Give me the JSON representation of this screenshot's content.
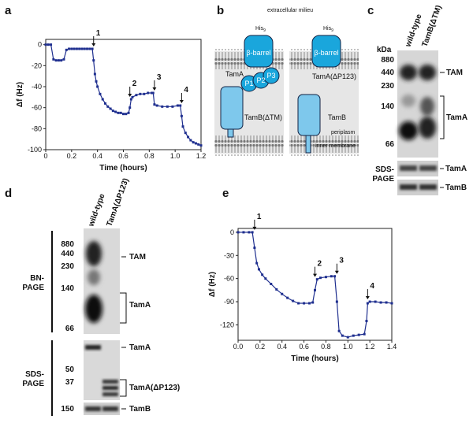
{
  "chart_data": [
    {
      "type": "line",
      "label": "a",
      "xlabel": "Time (hours)",
      "ylabel": "Δf (Hz)",
      "color": "#1f2f8f",
      "xlim": [
        0,
        1.2
      ],
      "xticks": [
        0,
        0.2,
        0.4,
        0.6,
        0.8,
        {
          "value": 1,
          "label": "1.0"
        },
        1.2
      ],
      "ylim": [
        -100,
        5
      ],
      "yticks": [
        0,
        -20,
        -40,
        -60,
        -80,
        -100
      ],
      "x": [
        0,
        0.02,
        0.04,
        0.06,
        0.08,
        0.1,
        0.12,
        0.14,
        0.16,
        0.18,
        0.2,
        0.22,
        0.24,
        0.26,
        0.28,
        0.3,
        0.32,
        0.34,
        0.36,
        0.37,
        0.38,
        0.39,
        0.4,
        0.42,
        0.44,
        0.46,
        0.48,
        0.5,
        0.52,
        0.54,
        0.56,
        0.58,
        0.6,
        0.62,
        0.64,
        0.65,
        0.66,
        0.67,
        0.7,
        0.73,
        0.76,
        0.79,
        0.82,
        0.83,
        0.84,
        0.86,
        0.9,
        0.94,
        0.98,
        1.02,
        1.04,
        1.05,
        1.06,
        1.08,
        1.1,
        1.12,
        1.14,
        1.16,
        1.18,
        1.2
      ],
      "values": [
        0,
        0,
        0,
        -14,
        -15,
        -15,
        -15,
        -14,
        -5,
        -4,
        -4,
        -4,
        -4,
        -4,
        -4,
        -4,
        -4,
        -4,
        -4,
        -15,
        -28,
        -35,
        -40,
        -47,
        -52,
        -56,
        -59,
        -61,
        -63,
        -64,
        -65,
        -65,
        -66,
        -66,
        -65,
        -60,
        -52,
        -50,
        -48,
        -47,
        -47,
        -46,
        -46,
        -46,
        -57,
        -58,
        -59,
        -59,
        -59,
        -58,
        -58,
        -68,
        -78,
        -84,
        -88,
        -91,
        -93,
        -94,
        -95,
        -96
      ],
      "annotations": [
        {
          "text": "1",
          "x": 0.37
        },
        {
          "text": "2",
          "x": 0.65
        },
        {
          "text": "3",
          "x": 0.84
        },
        {
          "text": "4",
          "x": 1.05
        }
      ]
    },
    {
      "type": "line",
      "label": "e",
      "xlabel": "Time (hours)",
      "ylabel": "Δf (Hz)",
      "color": "#1f2f8f",
      "xlim": [
        0,
        1.4
      ],
      "xticks": [
        {
          "value": 0,
          "label": "0.0"
        },
        0.2,
        0.4,
        0.6,
        0.8,
        {
          "value": 1,
          "label": "1.0"
        },
        1.2,
        1.4
      ],
      "ylim": [
        -140,
        5
      ],
      "yticks": [
        0,
        -30,
        -60,
        -90,
        -120
      ],
      "x": [
        0,
        0.05,
        0.1,
        0.13,
        0.15,
        0.17,
        0.19,
        0.22,
        0.25,
        0.3,
        0.35,
        0.4,
        0.45,
        0.5,
        0.55,
        0.6,
        0.65,
        0.68,
        0.7,
        0.72,
        0.75,
        0.8,
        0.85,
        0.88,
        0.9,
        0.92,
        0.95,
        1.0,
        1.05,
        1.1,
        1.15,
        1.17,
        1.18,
        1.2,
        1.25,
        1.3,
        1.35,
        1.4
      ],
      "values": [
        0,
        0,
        0,
        0,
        -20,
        -40,
        -48,
        -55,
        -60,
        -67,
        -74,
        -80,
        -85,
        -89,
        -92,
        -92,
        -92,
        -91,
        -75,
        -61,
        -59,
        -58,
        -57,
        -57,
        -90,
        -128,
        -134,
        -136,
        -134,
        -133,
        -132,
        -115,
        -92,
        -90,
        -90,
        -91,
        -91,
        -92
      ],
      "annotations": [
        {
          "text": "1",
          "x": 0.15
        },
        {
          "text": "2",
          "x": 0.7
        },
        {
          "text": "3",
          "x": 0.9
        },
        {
          "text": "4",
          "x": 1.18
        }
      ]
    }
  ],
  "diagram": {
    "label": "b",
    "top": "extracellular milieu",
    "his": "His",
    "his_sub": "9",
    "barrel": "β-barrel",
    "tama": "TamA",
    "p1": "P1",
    "p2": "P2",
    "p3": "P3",
    "tamb_dtm": "TamB(ΔTM)",
    "tama_dp123": "TamA(ΔP123)",
    "tamb": "TamB",
    "periplasm": "periplasm",
    "inner": "inner membrane"
  },
  "gel_c": {
    "label": "c",
    "unit": "kDa",
    "lanes": [
      "wild-type",
      "TamB(ΔTM)"
    ],
    "markers": [
      880,
      440,
      230,
      140,
      66
    ],
    "bands": [
      "TAM",
      "TamA"
    ],
    "sds_title": [
      "SDS-",
      "PAGE"
    ],
    "sds_bands": [
      "TamA",
      "TamB"
    ]
  },
  "gel_d": {
    "label": "d",
    "lanes": [
      "wild-type",
      "TamA(ΔP123)"
    ],
    "bn_title": [
      "BN-",
      "PAGE"
    ],
    "bn_markers": [
      880,
      440,
      230,
      140,
      66
    ],
    "bn_bands": [
      "TAM",
      "TamA"
    ],
    "sds_title": [
      "SDS-",
      "PAGE"
    ],
    "sds_markers": [
      50,
      37,
      150
    ],
    "sds_bands": [
      "TamA",
      "TamA(ΔP123)",
      "TamB"
    ]
  }
}
